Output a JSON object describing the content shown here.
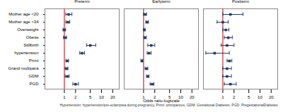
{
  "chart_data": {
    "type": "forest",
    "categories": [
      "Mother age <20",
      "Mother age >34",
      "Overweight",
      "Obese",
      "Stillbirth",
      "hypertension",
      "Primi",
      "Grand multipara",
      "GDM",
      "PGD"
    ],
    "series": [
      {
        "name": "Preterm",
        "values": [
          1.3,
          1.25,
          1.0,
          1.05,
          5.0,
          3.0,
          1.2,
          1.15,
          1.2,
          2.0
        ],
        "lower": [
          1.1,
          1.1,
          0.92,
          0.95,
          4.0,
          2.6,
          1.1,
          1.05,
          1.05,
          1.7
        ],
        "upper": [
          1.6,
          1.4,
          1.08,
          1.15,
          7.0,
          3.5,
          1.3,
          1.25,
          1.35,
          2.4
        ]
      },
      {
        "name": "Earlyterm",
        "values": [
          1.1,
          1.25,
          1.05,
          1.1,
          1.6,
          1.4,
          0.9,
          1.2,
          1.3,
          1.7
        ],
        "lower": [
          1.0,
          1.15,
          1.0,
          1.02,
          1.3,
          1.25,
          0.85,
          1.1,
          1.2,
          1.5
        ],
        "upper": [
          1.2,
          1.35,
          1.1,
          1.18,
          2.0,
          1.6,
          0.95,
          1.3,
          1.4,
          1.9
        ]
      },
      {
        "name": "Postterm",
        "values": [
          1.6,
          1.0,
          1.2,
          1.4,
          1.3,
          0.6,
          1.5,
          1.3,
          1.3,
          1.6
        ],
        "lower": [
          1.0,
          0.7,
          1.0,
          1.1,
          0.9,
          0.35,
          1.3,
          1.0,
          1.0,
          1.1
        ],
        "upper": [
          3.5,
          1.4,
          1.45,
          1.8,
          2.0,
          1.5,
          1.75,
          1.7,
          1.7,
          2.3
        ]
      }
    ],
    "reference": 1,
    "color": "#1f3a6e",
    "log": "x",
    "xlim": [
      0.3,
      30
    ],
    "xticks": [
      1,
      2,
      5,
      10,
      20
    ],
    "x_label": "Odds ratio-logscale",
    "note": "Hypertension: hypertension/pre-eclampsia during pregnancy, Primi: primiparous, GDM: Gestational Diabetes, PGD: PregestationalDiabetes."
  }
}
